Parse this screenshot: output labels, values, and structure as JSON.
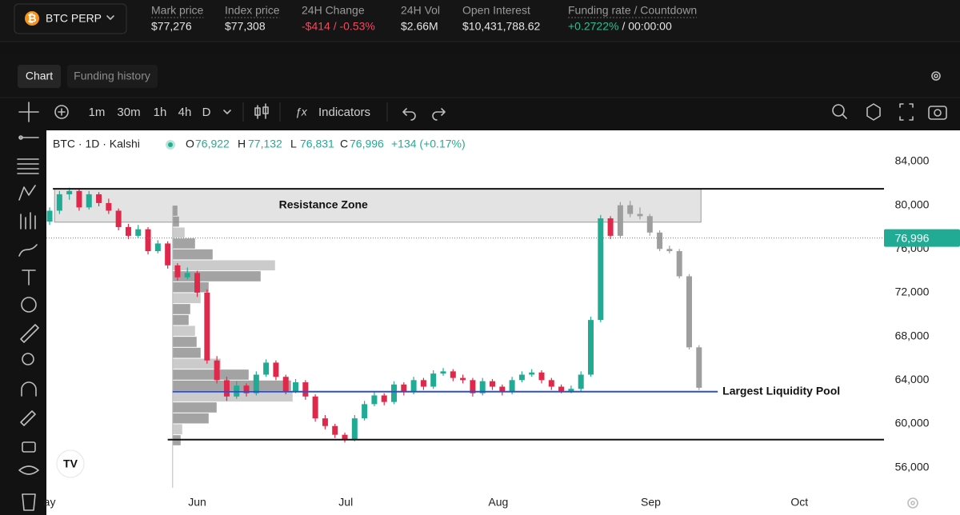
{
  "header": {
    "symbol": "BTC PERP",
    "stats": [
      {
        "label": "Mark price",
        "value": "$77,276",
        "color": "#e6e6e6"
      },
      {
        "label": "Index price",
        "value": "$77,308",
        "color": "#e6e6e6"
      },
      {
        "label": "24H Change",
        "value": "-$414 / -0.53%",
        "color": "#f2495c"
      },
      {
        "label": "24H Vol",
        "value": "$2.66M",
        "color": "#e6e6e6"
      },
      {
        "label": "Open Interest",
        "value": "$10,431,788.62",
        "color": "#e6e6e6"
      },
      {
        "label": "Funding rate / Countdown",
        "value": "+0.2722%",
        "color": "#2fbf8f",
        "countdown": "/ 00:00:00"
      }
    ]
  },
  "tabs": [
    "Chart",
    "Funding history"
  ],
  "toolbar": {
    "intervals": [
      "1m",
      "30m",
      "1h",
      "4h",
      "D"
    ],
    "indicators": "Indicators"
  },
  "chart_data": {
    "type": "candlestick",
    "title": "BTC · 1D · Kalshi",
    "ohlc_legend": {
      "labels": [
        "O",
        "H",
        "L",
        "C"
      ],
      "values": [
        "76,922",
        "77,132",
        "76,831",
        "76,996"
      ],
      "change": "+134 (+0.17%)"
    },
    "xlim": [
      -0.33,
      84.8
    ],
    "xticks": [
      {
        "value": 0,
        "label": "ay"
      },
      {
        "value": 15,
        "label": "Jun"
      },
      {
        "value": 30.1,
        "label": "Jul"
      },
      {
        "value": 45.6,
        "label": "Aug"
      },
      {
        "value": 61.1,
        "label": "Sep"
      },
      {
        "value": 76.2,
        "label": "Oct"
      }
    ],
    "ylim": [
      54000,
      86850
    ],
    "yticks": [
      {
        "value": 56000,
        "label": "56,000"
      },
      {
        "value": 60000,
        "label": "60,000"
      },
      {
        "value": 64000,
        "label": "64,000"
      },
      {
        "value": 68000,
        "label": "68,000"
      },
      {
        "value": 72000,
        "label": "72,000"
      },
      {
        "value": 76000,
        "label": "76,000"
      },
      {
        "value": 80000,
        "label": "80,000"
      },
      {
        "value": 84000,
        "label": "84,000"
      }
    ],
    "grid": false,
    "series": [
      {
        "up_color": "#22ab94",
        "down_color": "#e0294a",
        "x": [
          0,
          1,
          2,
          3,
          4,
          5,
          6,
          7,
          8,
          9,
          10,
          11,
          12,
          13,
          14,
          15,
          16,
          17,
          18,
          19,
          20,
          21,
          22,
          23,
          24,
          25,
          26,
          27,
          28,
          29,
          30,
          31,
          32,
          33,
          34,
          35,
          36,
          37,
          38,
          39,
          40,
          41,
          42,
          43,
          44,
          45,
          46,
          47,
          48,
          49,
          50,
          51,
          52,
          53,
          54,
          55,
          56,
          57
        ],
        "values": [
          [
            78500,
            79800,
            78200,
            79500
          ],
          [
            79500,
            81300,
            79200,
            81000
          ],
          [
            81000,
            81600,
            80500,
            81300
          ],
          [
            81300,
            81500,
            79500,
            79800
          ],
          [
            79800,
            81300,
            79600,
            81000
          ],
          [
            81000,
            81200,
            79900,
            80200
          ],
          [
            80200,
            80600,
            79200,
            79500
          ],
          [
            79500,
            79700,
            77700,
            78000
          ],
          [
            78000,
            78300,
            76900,
            77200
          ],
          [
            77200,
            78200,
            77000,
            77800
          ],
          [
            77800,
            78000,
            75500,
            75800
          ],
          [
            75800,
            76800,
            75600,
            76500
          ],
          [
            76500,
            76700,
            74200,
            74500
          ],
          [
            74500,
            74700,
            73100,
            73400
          ],
          [
            73400,
            74300,
            73200,
            73800
          ],
          [
            73800,
            74000,
            71600,
            72000
          ],
          [
            72000,
            72300,
            65500,
            65800
          ],
          [
            65800,
            66200,
            63700,
            64000
          ],
          [
            64000,
            64300,
            62100,
            62500
          ],
          [
            62500,
            63900,
            62300,
            63500
          ],
          [
            63500,
            63700,
            62500,
            62800
          ],
          [
            62800,
            64800,
            62600,
            64500
          ],
          [
            64500,
            65900,
            64300,
            65600
          ],
          [
            65600,
            65800,
            64000,
            64300
          ],
          [
            64300,
            64500,
            62700,
            63000
          ],
          [
            63000,
            64100,
            62800,
            63800
          ],
          [
            63800,
            64000,
            62200,
            62500
          ],
          [
            62500,
            62700,
            60200,
            60500
          ],
          [
            60500,
            60800,
            59500,
            59800
          ],
          [
            59800,
            60000,
            58700,
            59000
          ],
          [
            59000,
            59200,
            58300,
            58600
          ],
          [
            58600,
            60800,
            58400,
            60500
          ],
          [
            60500,
            62100,
            60300,
            61800
          ],
          [
            61800,
            62900,
            61600,
            62600
          ],
          [
            62600,
            62800,
            61700,
            62000
          ],
          [
            62000,
            63900,
            61800,
            63600
          ],
          [
            63600,
            63800,
            62600,
            62900
          ],
          [
            62900,
            64300,
            62700,
            64000
          ],
          [
            64000,
            64200,
            63100,
            63400
          ],
          [
            63400,
            64900,
            63200,
            64600
          ],
          [
            64600,
            65100,
            64400,
            64800
          ],
          [
            64800,
            65000,
            63900,
            64200
          ],
          [
            64200,
            64500,
            63700,
            64000
          ],
          [
            64000,
            64200,
            62500,
            62800
          ],
          [
            62800,
            64200,
            62600,
            63900
          ],
          [
            63900,
            64100,
            63100,
            63400
          ],
          [
            63400,
            63600,
            62600,
            62900
          ],
          [
            62900,
            64300,
            62700,
            64000
          ],
          [
            64000,
            64800,
            63800,
            64500
          ],
          [
            64500,
            65000,
            64300,
            64700
          ],
          [
            64700,
            64900,
            63700,
            64000
          ],
          [
            64000,
            64200,
            63100,
            63400
          ],
          [
            63400,
            63600,
            62800,
            63000
          ],
          [
            63000,
            63500,
            62800,
            63200
          ],
          [
            63200,
            64800,
            63000,
            64500
          ],
          [
            64500,
            69800,
            64300,
            69500
          ],
          [
            69500,
            79100,
            69300,
            78800
          ],
          [
            78800,
            79000,
            76900,
            77200
          ]
        ]
      },
      {
        "color": "#9e9e9e",
        "x": [
          58,
          59,
          60,
          61,
          62,
          63,
          64,
          65,
          66
        ],
        "values": [
          [
            77200,
            80300,
            77000,
            80000
          ],
          [
            80000,
            80400,
            78900,
            79200
          ],
          [
            79200,
            79800,
            78700,
            79000
          ],
          [
            79000,
            79200,
            77200,
            77500
          ],
          [
            77500,
            77700,
            75800,
            76000
          ],
          [
            76000,
            76300,
            75600,
            75800
          ],
          [
            75800,
            76000,
            73300,
            73500
          ],
          [
            73500,
            73700,
            66800,
            67000
          ],
          [
            67000,
            67200,
            63100,
            63300
          ]
        ]
      }
    ],
    "volume_profile": {
      "x": 12.5,
      "xlim": [
        0,
        150
      ],
      "color": "#8c8c8c",
      "price": [
        58000,
        59000,
        60000,
        61000,
        62000,
        63000,
        64000,
        65000,
        66000,
        67000,
        68000,
        69000,
        70000,
        71000,
        72000,
        73000,
        74000,
        75000,
        76000,
        77000,
        78000,
        79000
      ],
      "values": [
        10,
        12,
        45,
        55,
        150,
        148,
        95,
        60,
        35,
        30,
        28,
        20,
        22,
        35,
        45,
        110,
        128,
        50,
        28,
        15,
        8,
        6
      ]
    },
    "annotations": {
      "zone": {
        "label": "Resistance Zone",
        "y": [
          78450,
          81500
        ],
        "x": [
          0.5,
          66.2
        ],
        "color": "#dedede"
      },
      "lines": [
        {
          "y": 81500,
          "x": [
            0.33,
            84.8
          ],
          "color": "#111111"
        },
        {
          "y": 58550,
          "x": [
            12.0,
            84.8
          ],
          "color": "#111111"
        },
        {
          "y": 62940,
          "x": [
            12.5,
            67.9
          ],
          "color": "#2f4fd0",
          "label": "Largest Liquidity Pool"
        }
      ]
    },
    "last_price": {
      "value": 76996,
      "value_label": "76,996",
      "color": "#22ab94"
    }
  }
}
